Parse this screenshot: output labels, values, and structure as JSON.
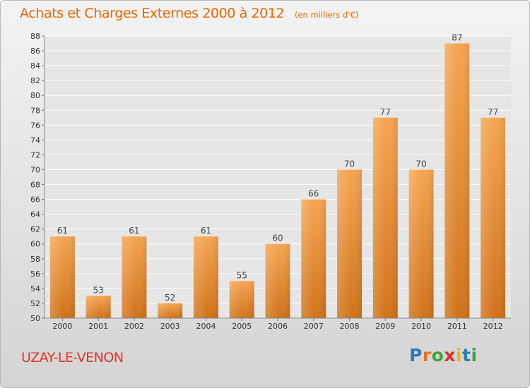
{
  "header": {
    "title": "Achats et Charges Externes 2000 à 2012",
    "unit": "(en milliers d'€)"
  },
  "footer": {
    "place": "UZAY-LE-VENON",
    "logo": {
      "text": "Proxiti",
      "letters": [
        "P",
        "r",
        "o",
        "x",
        "i",
        "t",
        "i"
      ],
      "colors": [
        "#2a7ab8",
        "#e8711b",
        "#3ea33c",
        "#d7322b",
        "#e5b81c",
        "#2a7ab8",
        "#3ea33c"
      ]
    }
  },
  "colors": {
    "title": "#ee6600",
    "place": "#e6332a",
    "bar_light": "#f5a552",
    "bar_dark": "#d0731a",
    "grid": "#ffffff"
  },
  "chart_data": {
    "type": "bar",
    "title": "Achats et Charges Externes 2000 à 2012",
    "subtitle": "(en milliers d'€)",
    "categories": [
      "2000",
      "2001",
      "2002",
      "2003",
      "2004",
      "2005",
      "2006",
      "2007",
      "2008",
      "2009",
      "2010",
      "2011",
      "2012"
    ],
    "values": [
      61,
      53,
      61,
      52,
      61,
      55,
      60,
      66,
      70,
      77,
      70,
      87,
      77
    ],
    "ylim": [
      50,
      88
    ],
    "yticks": [
      50,
      52,
      54,
      56,
      58,
      60,
      62,
      64,
      66,
      68,
      70,
      72,
      74,
      76,
      78,
      80,
      82,
      84,
      86,
      88
    ],
    "grid": true,
    "data_labels": true
  }
}
